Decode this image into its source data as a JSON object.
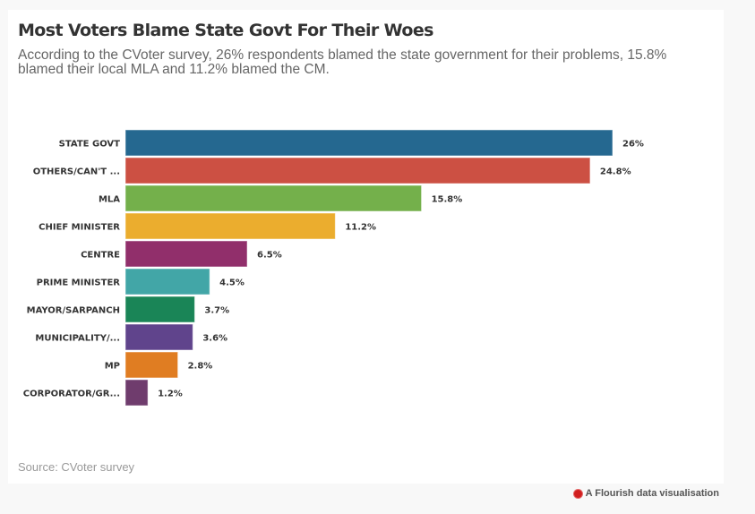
{
  "header": {
    "title": "Most Voters Blame State Govt For Their Woes",
    "subtitle": "According to the CVoter survey, 26% respondents blamed the state government for their problems, 15.8% blamed their local MLA and 11.2% blamed the CM."
  },
  "source": "Source: CVoter survey",
  "footer": {
    "label": "A Flourish data visualisation",
    "icon": "flourish-logo-icon"
  },
  "chart_data": {
    "type": "bar",
    "orientation": "horizontal",
    "title": "Most Voters Blame State Govt For Their Woes",
    "xlabel": "",
    "ylabel": "",
    "xlim": [
      0,
      26
    ],
    "grid": false,
    "legend": "none",
    "categories": [
      "STATE GOVT",
      "OTHERS/CAN'T ...",
      "MLA",
      "CHIEF MINISTER",
      "CENTRE",
      "PRIME MINISTER",
      "MAYOR/SARPANCH",
      "MUNICIPALITY/...",
      "MP",
      "CORPORATOR/GR..."
    ],
    "values": [
      26,
      24.8,
      15.8,
      11.2,
      6.5,
      4.5,
      3.7,
      3.6,
      2.8,
      1.2
    ],
    "value_labels": [
      "26%",
      "24.8%",
      "15.8%",
      "11.2%",
      "6.5%",
      "4.5%",
      "3.7%",
      "3.6%",
      "2.8%",
      "1.2%"
    ],
    "colors": [
      "#256890",
      "#cc5043",
      "#74b04b",
      "#ebad2e",
      "#912f6b",
      "#42a6a7",
      "#1a8557",
      "#60448c",
      "#e07d22",
      "#6f3c6d"
    ]
  }
}
